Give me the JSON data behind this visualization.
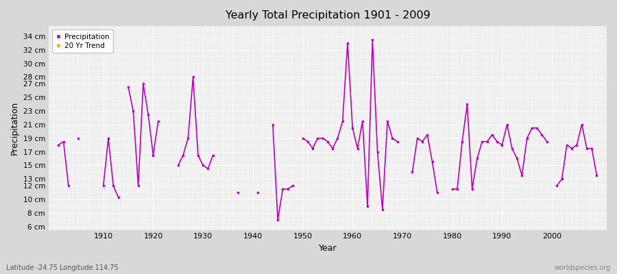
{
  "title": "Yearly Total Precipitation 1901 - 2009",
  "xlabel": "Year",
  "ylabel": "Precipitation",
  "lat_lon_label": "Latitude -24.75 Longitude 114.75",
  "watermark": "worldspecies.org",
  "line_color": "#BB00BB",
  "trend_color": "#FFA500",
  "fig_bg_color": "#D8D8D8",
  "plot_bg_color": "#EFEFEF",
  "legend_labels": [
    "Precipitation",
    "20 Yr Trend"
  ],
  "precip_data": {
    "1901": 18.0,
    "1902": 18.5,
    "1903": 12.0,
    "1905": 19.0,
    "1910": 12.0,
    "1911": 19.0,
    "1912": 12.0,
    "1913": 10.3,
    "1915": 26.5,
    "1916": 23.0,
    "1917": 12.0,
    "1918": 27.0,
    "1919": 22.5,
    "1920": 16.5,
    "1921": 21.5,
    "1925": 15.0,
    "1926": 16.5,
    "1927": 19.0,
    "1928": 28.0,
    "1929": 16.5,
    "1930": 15.0,
    "1931": 14.5,
    "1932": 16.5,
    "1937": 11.0,
    "1941": 11.0,
    "1944": 21.0,
    "1945": 7.0,
    "1946": 11.5,
    "1947": 11.5,
    "1948": 12.0,
    "1950": 19.0,
    "1951": 18.5,
    "1952": 17.5,
    "1953": 19.0,
    "1954": 19.0,
    "1955": 18.5,
    "1956": 17.5,
    "1957": 19.0,
    "1958": 21.5,
    "1959": 33.0,
    "1960": 20.5,
    "1961": 17.5,
    "1962": 21.5,
    "1963": 9.0,
    "1964": 33.5,
    "1965": 17.0,
    "1966": 8.5,
    "1967": 21.5,
    "1968": 19.0,
    "1969": 18.5,
    "1972": 14.0,
    "1973": 19.0,
    "1974": 18.5,
    "1975": 19.5,
    "1976": 15.5,
    "1977": 11.0,
    "1980": 11.5,
    "1981": 11.5,
    "1982": 18.5,
    "1983": 24.0,
    "1984": 11.5,
    "1985": 16.0,
    "1986": 18.5,
    "1987": 18.5,
    "1988": 19.5,
    "1989": 18.5,
    "1990": 18.0,
    "1991": 21.0,
    "1992": 17.5,
    "1993": 16.0,
    "1994": 13.5,
    "1995": 19.0,
    "1996": 20.5,
    "1997": 20.5,
    "1998": 19.5,
    "1999": 18.5,
    "2001": 12.0,
    "2002": 13.0,
    "2003": 18.0,
    "2004": 17.5,
    "2005": 18.0,
    "2006": 21.0,
    "2007": 17.5,
    "2008": 17.5,
    "2009": 13.5
  },
  "yticks": [
    6,
    8,
    10,
    12,
    13,
    15,
    17,
    19,
    21,
    23,
    25,
    27,
    28,
    30,
    32,
    34
  ],
  "ylim": [
    5.5,
    35.5
  ],
  "xlim": [
    1899,
    2011
  ],
  "xticks": [
    1910,
    1920,
    1930,
    1940,
    1950,
    1960,
    1970,
    1980,
    1990,
    2000
  ]
}
